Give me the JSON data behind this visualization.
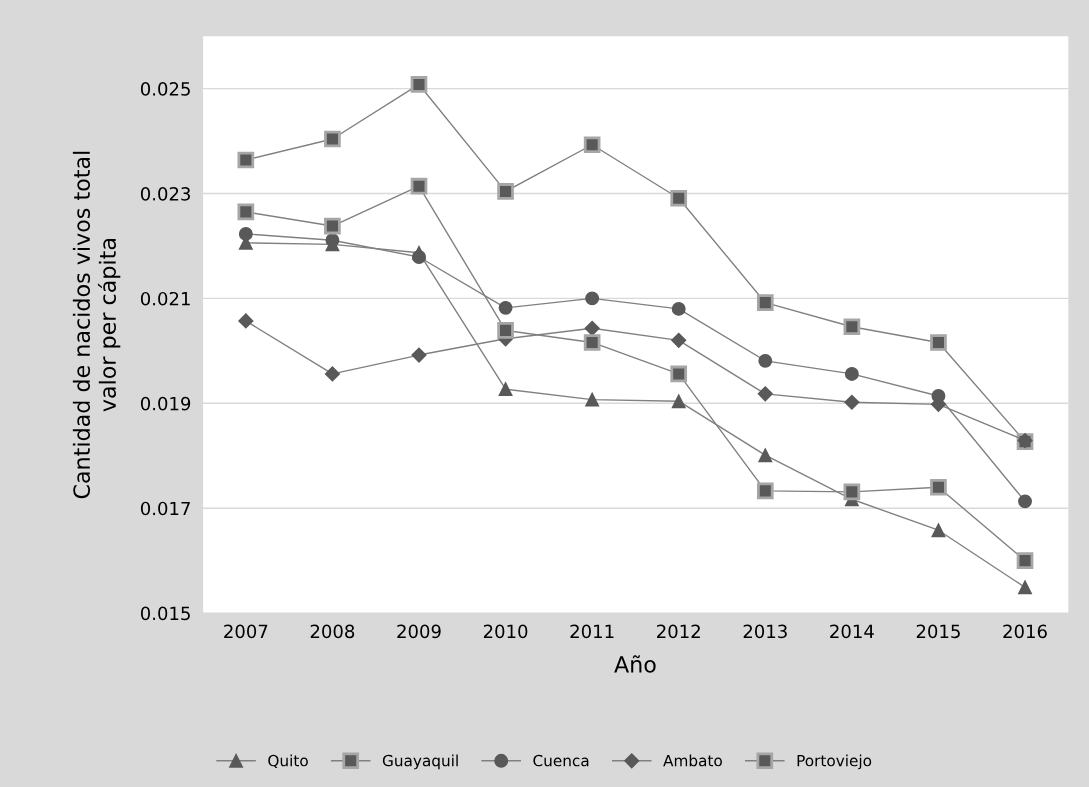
{
  "chart_data": {
    "type": "line",
    "xlabel": "Año",
    "ylabel": "Cantidad de nacidos vivos total\nvalor per cápita",
    "categories": [
      "2007",
      "2008",
      "2009",
      "2010",
      "2011",
      "2012",
      "2013",
      "2014",
      "2015",
      "2016"
    ],
    "series": [
      {
        "name": "Quito",
        "color": "#595959",
        "marker": "triangle",
        "values": [
          0.02206,
          0.02203,
          0.02187,
          0.01927,
          0.01907,
          0.01904,
          0.01801,
          0.01717,
          0.01658,
          0.01549
        ]
      },
      {
        "name": "Guayaquil",
        "color": "#595959",
        "marker": "square",
        "values": [
          0.02364,
          0.02404,
          0.02508,
          0.02304,
          0.02393,
          0.02291,
          0.02092,
          0.02046,
          0.02016,
          0.01827
        ]
      },
      {
        "name": "Cuenca",
        "color": "#595959",
        "marker": "circle",
        "values": [
          0.02223,
          0.02211,
          0.02179,
          0.02082,
          0.021,
          0.0208,
          0.01981,
          0.01956,
          0.01914,
          0.01713
        ]
      },
      {
        "name": "Ambato",
        "color": "#595959",
        "marker": "diamond",
        "values": [
          0.02057,
          0.01956,
          0.01992,
          0.02023,
          0.02043,
          0.0202,
          0.01918,
          0.01902,
          0.01898,
          0.01829
        ]
      },
      {
        "name": "Portoviejo",
        "color": "#595959",
        "marker": "square",
        "values": [
          0.02265,
          0.02238,
          0.02314,
          0.02039,
          0.02016,
          0.01956,
          0.01733,
          0.01731,
          0.0174,
          0.016
        ]
      }
    ],
    "ylim": [
      0.015,
      0.026
    ],
    "yticks": [
      0.015,
      0.017,
      0.019,
      0.021,
      0.023,
      0.025
    ],
    "grid": "y",
    "legend": "bottom",
    "line_style": "solid"
  }
}
